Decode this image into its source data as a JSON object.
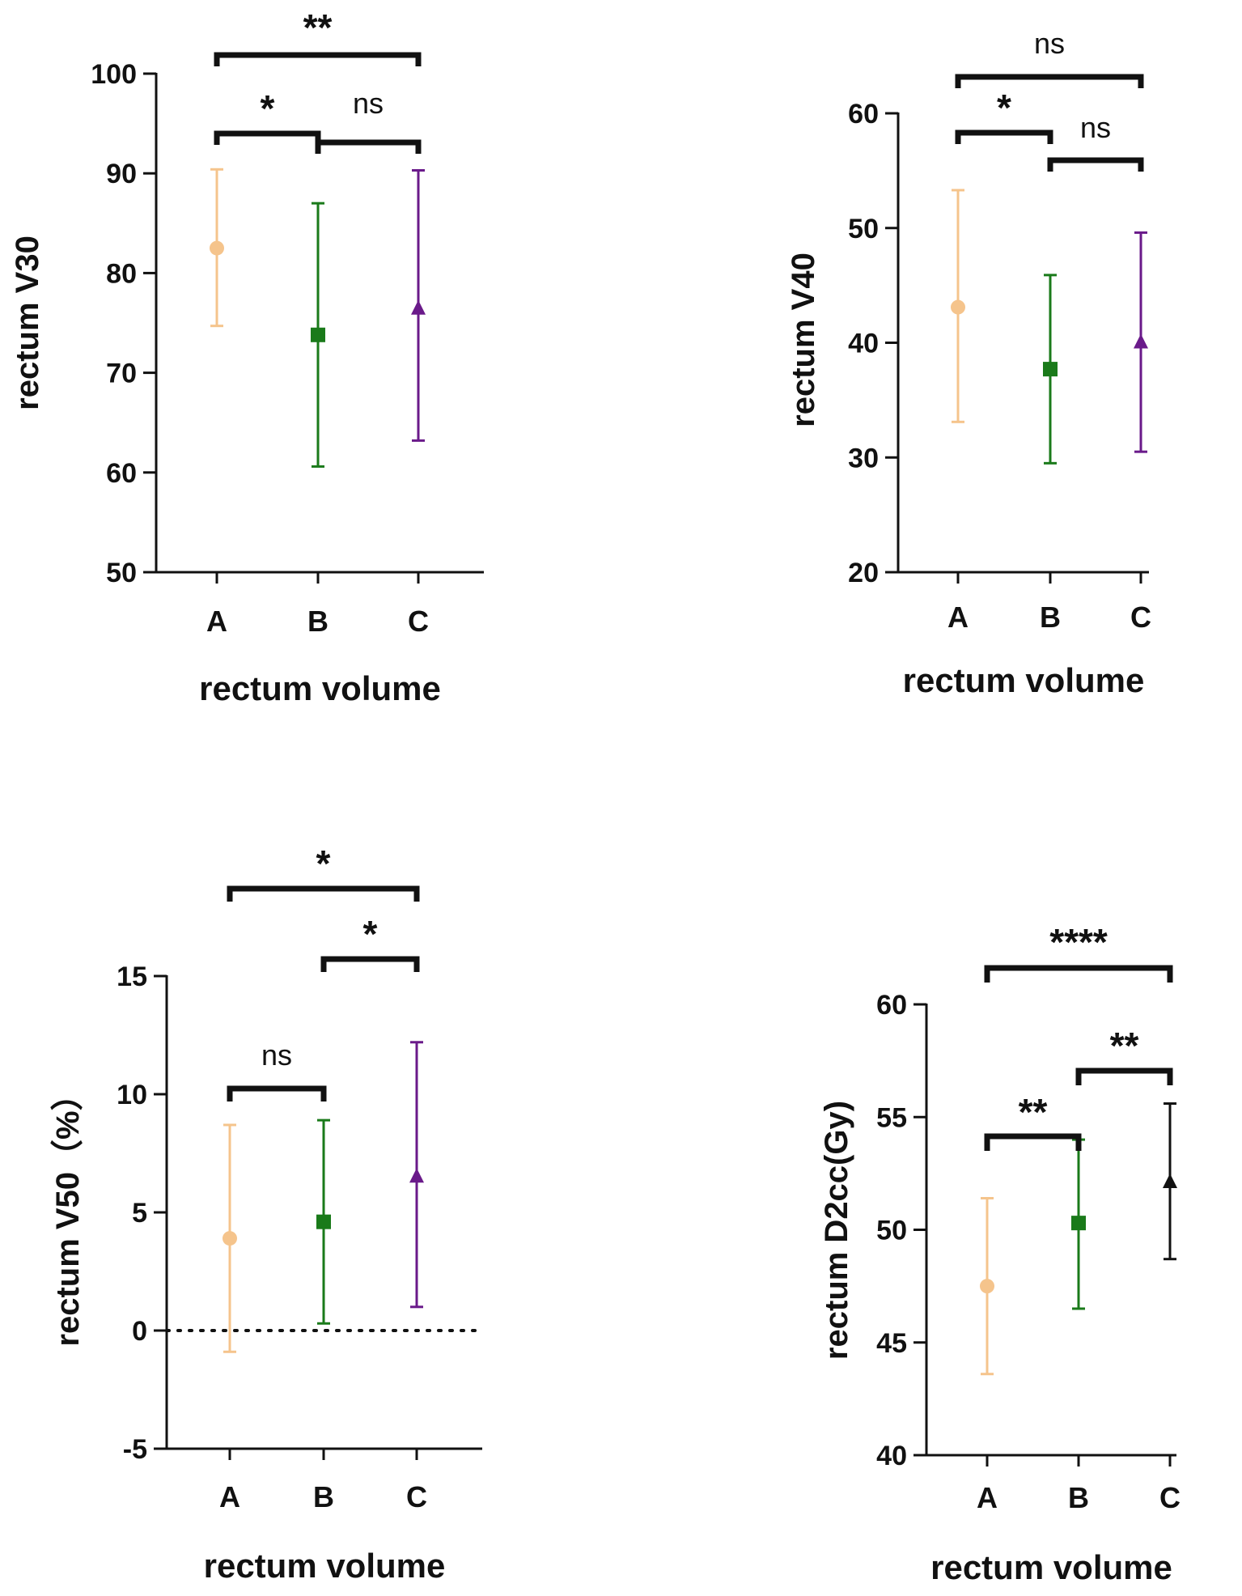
{
  "chart_data": [
    {
      "type": "scatter",
      "title": "",
      "xlabel": "rectum volume",
      "ylabel": "rectum V30",
      "categories": [
        "A",
        "B",
        "C"
      ],
      "ylim": [
        50,
        100
      ],
      "yticks": [
        50,
        60,
        70,
        80,
        90,
        100
      ],
      "ytick_labels": [
        "50",
        "60",
        "70",
        "80",
        "90",
        "100"
      ],
      "series": [
        {
          "name": "A",
          "mean": 82.5,
          "lower": 74.7,
          "upper": 90.4,
          "marker": "circle",
          "color": "#f5c48c"
        },
        {
          "name": "B",
          "mean": 73.8,
          "lower": 60.6,
          "upper": 87.0,
          "marker": "square",
          "color": "#1a7a1a"
        },
        {
          "name": "C",
          "mean": 76.4,
          "lower": 63.2,
          "upper": 90.3,
          "marker": "triangle",
          "color": "#6a1a8a"
        }
      ],
      "brackets": [
        {
          "from": "A",
          "to": "C",
          "label": "**"
        },
        {
          "from": "A",
          "to": "B",
          "label": "*"
        },
        {
          "from": "B",
          "to": "C",
          "label": "ns"
        }
      ],
      "reference_line": null
    },
    {
      "type": "scatter",
      "title": "",
      "xlabel": "rectum volume",
      "ylabel": "rectum V40",
      "categories": [
        "A",
        "B",
        "C"
      ],
      "ylim": [
        20,
        60
      ],
      "yticks": [
        20,
        30,
        40,
        50,
        60
      ],
      "ytick_labels": [
        "20",
        "30",
        "40",
        "50",
        "60"
      ],
      "series": [
        {
          "name": "A",
          "mean": 43.1,
          "lower": 33.1,
          "upper": 53.3,
          "marker": "circle",
          "color": "#f5c48c"
        },
        {
          "name": "B",
          "mean": 37.7,
          "lower": 29.5,
          "upper": 45.9,
          "marker": "square",
          "color": "#1a7a1a"
        },
        {
          "name": "C",
          "mean": 40.0,
          "lower": 30.5,
          "upper": 49.6,
          "marker": "triangle",
          "color": "#6a1a8a"
        }
      ],
      "brackets": [
        {
          "from": "A",
          "to": "C",
          "label": "ns"
        },
        {
          "from": "A",
          "to": "B",
          "label": "*"
        },
        {
          "from": "B",
          "to": "C",
          "label": "ns"
        }
      ],
      "reference_line": null
    },
    {
      "type": "scatter",
      "title": "",
      "xlabel": "rectum volume",
      "ylabel": "rectum V50（%）",
      "categories": [
        "A",
        "B",
        "C"
      ],
      "ylim": [
        -5,
        15
      ],
      "yticks": [
        -5,
        0,
        5,
        10,
        15
      ],
      "ytick_labels": [
        "-5",
        "0",
        "5",
        "10",
        "15"
      ],
      "series": [
        {
          "name": "A",
          "mean": 3.9,
          "lower": -0.9,
          "upper": 8.7,
          "marker": "circle",
          "color": "#f5c48c"
        },
        {
          "name": "B",
          "mean": 4.6,
          "lower": 0.3,
          "upper": 8.9,
          "marker": "square",
          "color": "#1a7a1a"
        },
        {
          "name": "C",
          "mean": 6.5,
          "lower": 1.0,
          "upper": 12.2,
          "marker": "triangle",
          "color": "#6a1a8a"
        }
      ],
      "brackets": [
        {
          "from": "A",
          "to": "C",
          "label": "*"
        },
        {
          "from": "B",
          "to": "C",
          "label": "*"
        },
        {
          "from": "A",
          "to": "B",
          "label": "ns"
        }
      ],
      "reference_line": 0
    },
    {
      "type": "scatter",
      "title": "",
      "xlabel": "rectum volume",
      "ylabel": "rectum D2cc(Gy)",
      "categories": [
        "A",
        "B",
        "C"
      ],
      "ylim": [
        40,
        60
      ],
      "yticks": [
        40,
        45,
        50,
        55,
        60
      ],
      "ytick_labels": [
        "40",
        "45",
        "50",
        "55",
        "60"
      ],
      "series": [
        {
          "name": "A",
          "mean": 47.5,
          "lower": 43.6,
          "upper": 51.4,
          "marker": "circle",
          "color": "#f5c48c"
        },
        {
          "name": "B",
          "mean": 50.3,
          "lower": 46.5,
          "upper": 54.0,
          "marker": "square",
          "color": "#1a7a1a"
        },
        {
          "name": "C",
          "mean": 52.1,
          "lower": 48.7,
          "upper": 55.6,
          "marker": "triangle",
          "color": "#111111"
        }
      ],
      "brackets": [
        {
          "from": "A",
          "to": "C",
          "label": "****"
        },
        {
          "from": "B",
          "to": "C",
          "label": "**"
        },
        {
          "from": "A",
          "to": "B",
          "label": "**"
        }
      ],
      "reference_line": null
    }
  ]
}
